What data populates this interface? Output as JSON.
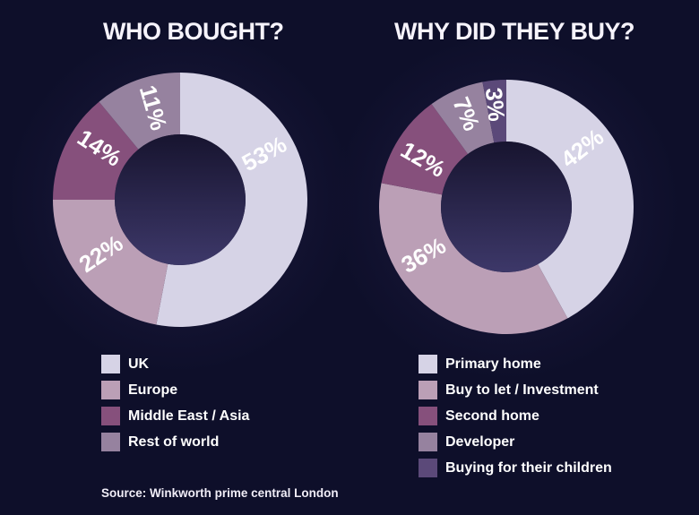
{
  "background_color": "#0e0f2a",
  "text_color": "#ffffff",
  "source_note": "Source: Winkworth prime central London",
  "hole_gradient": [
    "#17142f",
    "#3d3869"
  ],
  "chart_data": [
    {
      "type": "pie",
      "subtype": "donut",
      "title": "WHO BOUGHT?",
      "categories": [
        "UK",
        "Europe",
        "Middle East / Asia",
        "Rest of world"
      ],
      "values": [
        53,
        22,
        14,
        11
      ],
      "value_labels": [
        "53%",
        "22%",
        "14%",
        "11%"
      ],
      "colors": [
        "#d6d3e6",
        "#bb9fb6",
        "#86507c",
        "#96829f"
      ],
      "start_angle_deg": 0,
      "direction": "clockwise",
      "legend_position": "below",
      "label_angles_deg": [
        61,
        236,
        303,
        344
      ],
      "label_radii": [
        107,
        107,
        107,
        107
      ]
    },
    {
      "type": "pie",
      "subtype": "donut",
      "title": "WHY DID THEY BUY?",
      "categories": [
        "Primary home",
        "Buy to let / Investment",
        "Second home",
        "Developer",
        "Buying for their children"
      ],
      "values": [
        42,
        36,
        12,
        7,
        3
      ],
      "value_labels": [
        "42%",
        "36%",
        "12%",
        "7%",
        "3%"
      ],
      "colors": [
        "#d6d3e6",
        "#bb9fb6",
        "#86507c",
        "#96829f",
        "#5b4979"
      ],
      "start_angle_deg": 0,
      "direction": "clockwise",
      "legend_position": "below",
      "label_angles_deg": [
        52,
        240,
        300,
        337,
        354
      ],
      "label_radii": [
        107,
        107,
        107,
        113,
        115
      ]
    }
  ]
}
